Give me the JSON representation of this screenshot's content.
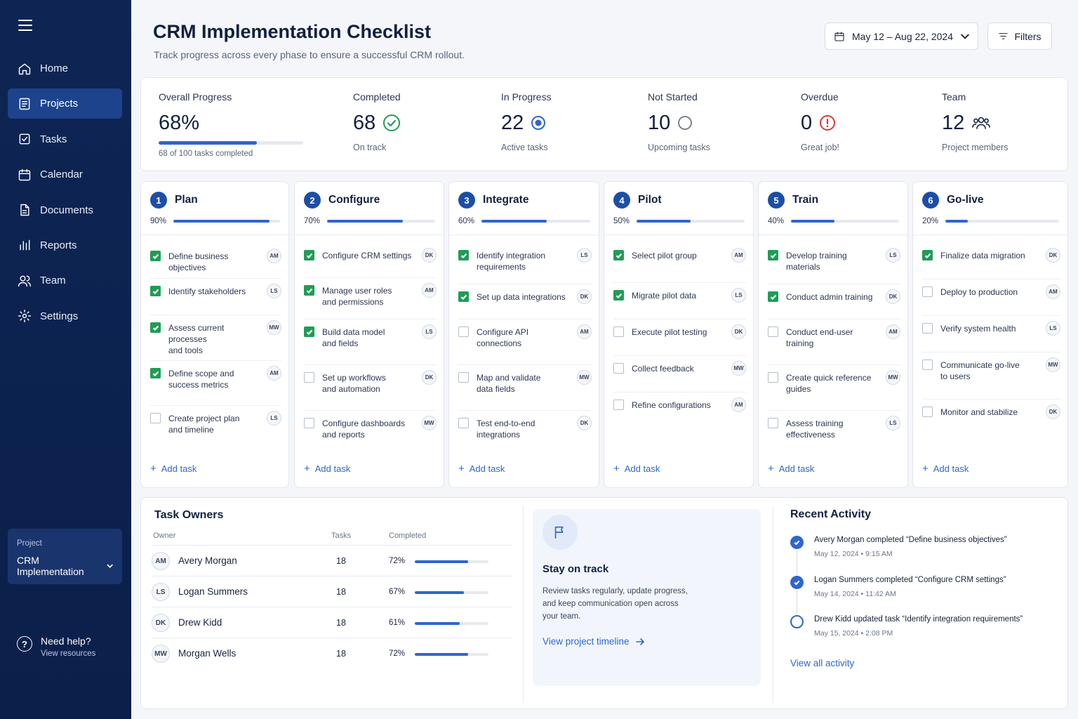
{
  "sidebar": {
    "nav": [
      "Home",
      "Projects",
      "Tasks",
      "Calendar",
      "Documents",
      "Reports",
      "Team",
      "Settings"
    ],
    "active": "Projects",
    "project_label": "Project",
    "project_value": "CRM Implementation",
    "help_title": "Need help?",
    "help_sub": "View resources"
  },
  "header": {
    "title": "CRM Implementation Checklist",
    "subtitle": "Track progress across every phase to ensure a successful CRM rollout.",
    "date_range": "May 12 – Aug 22, 2024",
    "filters_label": "Filters"
  },
  "stats": {
    "overall": {
      "label": "Overall Progress",
      "value": "68%",
      "progress": 0.68,
      "sub": "68 of 100 tasks completed"
    },
    "completed": {
      "label": "Completed",
      "value": "68",
      "sub": "On track"
    },
    "in_progress": {
      "label": "In Progress",
      "value": "22",
      "sub": "Active tasks"
    },
    "not_started": {
      "label": "Not Started",
      "value": "10",
      "sub": "Upcoming tasks"
    },
    "overdue": {
      "label": "Overdue",
      "value": "0",
      "sub": "Great job!"
    },
    "team": {
      "label": "Team",
      "value": "12",
      "sub": "Project members"
    }
  },
  "add_task_label": "Add task",
  "phases": [
    {
      "num": "1",
      "name": "Plan",
      "pct": "90%",
      "progress": 0.9,
      "tasks": [
        {
          "lines": [
            "Define business objectives"
          ],
          "done": true,
          "owner": "AM"
        },
        {
          "lines": [
            "Identify stakeholders"
          ],
          "done": true,
          "owner": "LS"
        },
        {
          "lines": [
            "Assess current processes",
            "and tools"
          ],
          "done": true,
          "owner": "MW"
        },
        {
          "lines": [
            "Define scope and",
            "success metrics"
          ],
          "done": true,
          "owner": "AM"
        },
        {
          "lines": [
            "Create project plan",
            "and timeline"
          ],
          "done": false,
          "owner": "LS"
        }
      ]
    },
    {
      "num": "2",
      "name": "Configure",
      "pct": "70%",
      "progress": 0.7,
      "tasks": [
        {
          "lines": [
            "Configure CRM settings"
          ],
          "done": true,
          "owner": "DK"
        },
        {
          "lines": [
            "Manage user roles",
            "and permissions"
          ],
          "done": true,
          "owner": "AM"
        },
        {
          "lines": [
            "Build data model",
            "and fields"
          ],
          "done": true,
          "owner": "LS"
        },
        {
          "lines": [
            "Set up workflows",
            "and automation"
          ],
          "done": false,
          "owner": "DK"
        },
        {
          "lines": [
            "Configure dashboards",
            "and reports"
          ],
          "done": false,
          "owner": "MW"
        }
      ]
    },
    {
      "num": "3",
      "name": "Integrate",
      "pct": "60%",
      "progress": 0.6,
      "tasks": [
        {
          "lines": [
            "Identify integration",
            "requirements"
          ],
          "done": true,
          "owner": "LS"
        },
        {
          "lines": [
            "Set up data integrations"
          ],
          "done": true,
          "owner": "DK"
        },
        {
          "lines": [
            "Configure API",
            "connections"
          ],
          "done": false,
          "owner": "AM"
        },
        {
          "lines": [
            "Map and validate",
            "data fields"
          ],
          "done": false,
          "owner": "MW"
        },
        {
          "lines": [
            "Test end-to-end",
            "integrations"
          ],
          "done": false,
          "owner": "DK"
        }
      ]
    },
    {
      "num": "4",
      "name": "Pilot",
      "pct": "50%",
      "progress": 0.5,
      "tasks": [
        {
          "lines": [
            "Select pilot group"
          ],
          "done": true,
          "owner": "AM"
        },
        {
          "lines": [
            "Migrate pilot data"
          ],
          "done": true,
          "owner": "LS"
        },
        {
          "lines": [
            "Execute pilot testing"
          ],
          "done": false,
          "owner": "DK"
        },
        {
          "lines": [
            "Collect feedback"
          ],
          "done": false,
          "owner": "MW"
        },
        {
          "lines": [
            "Refine configurations"
          ],
          "done": false,
          "owner": "AM"
        }
      ]
    },
    {
      "num": "5",
      "name": "Train",
      "pct": "40%",
      "progress": 0.4,
      "tasks": [
        {
          "lines": [
            "Develop training",
            "materials"
          ],
          "done": true,
          "owner": "LS"
        },
        {
          "lines": [
            "Conduct admin training"
          ],
          "done": true,
          "owner": "DK"
        },
        {
          "lines": [
            "Conduct end-user",
            "training"
          ],
          "done": false,
          "owner": "AM"
        },
        {
          "lines": [
            "Create quick reference",
            "guides"
          ],
          "done": false,
          "owner": "MW"
        },
        {
          "lines": [
            "Assess training",
            "effectiveness"
          ],
          "done": false,
          "owner": "LS"
        }
      ]
    },
    {
      "num": "6",
      "name": "Go-live",
      "pct": "20%",
      "progress": 0.2,
      "tasks": [
        {
          "lines": [
            "Finalize data migration"
          ],
          "done": true,
          "owner": "DK"
        },
        {
          "lines": [
            "Deploy to production"
          ],
          "done": false,
          "owner": "AM"
        },
        {
          "lines": [
            "Verify system health"
          ],
          "done": false,
          "owner": "LS"
        },
        {
          "lines": [
            "Communicate go-live",
            "to users"
          ],
          "done": false,
          "owner": "MW"
        },
        {
          "lines": [
            "Monitor and stabilize"
          ],
          "done": false,
          "owner": "DK"
        }
      ]
    }
  ],
  "owners": {
    "title": "Task Owners",
    "headers": [
      "Owner",
      "Tasks",
      "Completed"
    ],
    "rows": [
      {
        "initials": "AM",
        "name": "Avery Morgan",
        "tasks": "18",
        "pct": "72%",
        "progress": 0.72
      },
      {
        "initials": "LS",
        "name": "Logan Summers",
        "tasks": "18",
        "pct": "67%",
        "progress": 0.67
      },
      {
        "initials": "DK",
        "name": "Drew Kidd",
        "tasks": "18",
        "pct": "61%",
        "progress": 0.61
      },
      {
        "initials": "MW",
        "name": "Morgan Wells",
        "tasks": "18",
        "pct": "72%",
        "progress": 0.72
      }
    ]
  },
  "stay": {
    "title": "Stay on track",
    "desc": "Review tasks regularly, update progress, and keep communication open across your team.",
    "link": "View project timeline"
  },
  "activity": {
    "title": "Recent Activity",
    "items": [
      {
        "text": "Avery Morgan completed “Define business objectives”",
        "time": "May 12, 2024  •  9:15 AM",
        "done": true
      },
      {
        "text": "Logan Summers completed “Configure CRM settings”",
        "time": "May 14, 2024  •  11:42 AM",
        "done": true
      },
      {
        "text": "Drew Kidd updated task “Identify integration requirements”",
        "time": "May 15, 2024  •  2:08 PM",
        "done": false
      }
    ],
    "link": "View all activity"
  },
  "colors": {
    "accent": "#2f66cc",
    "sidebar": "#0e2554",
    "success": "#1f9d55",
    "danger": "#d93a3a"
  }
}
